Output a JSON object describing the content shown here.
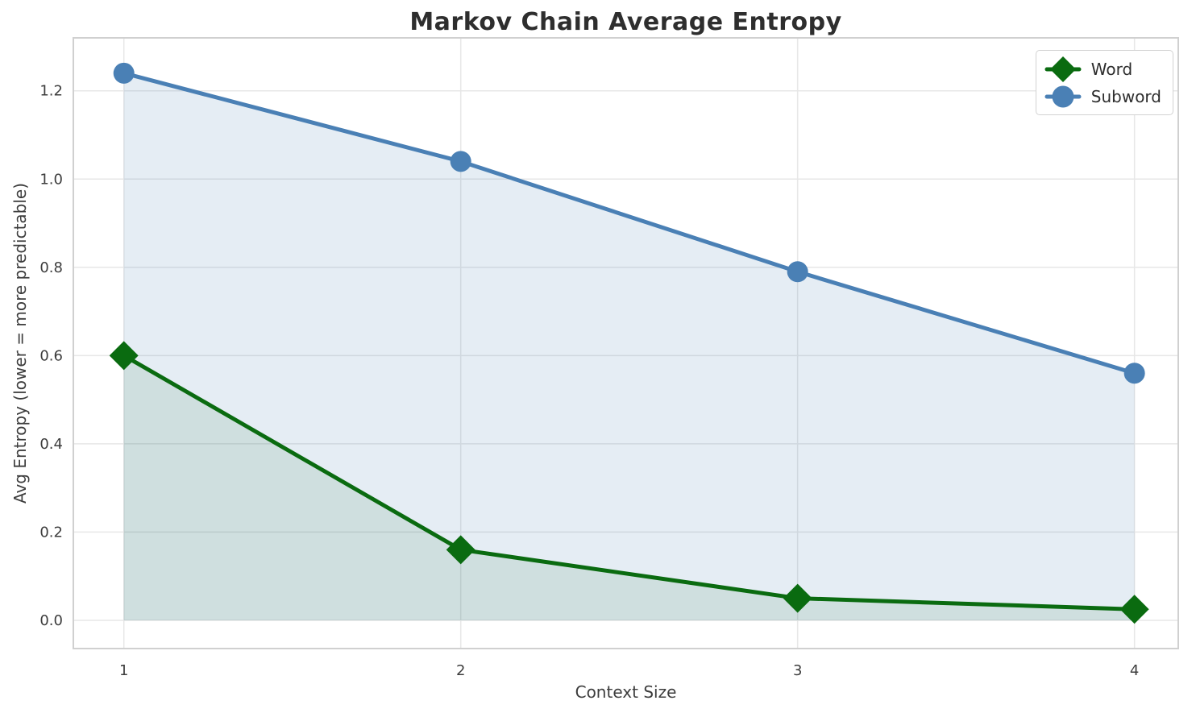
{
  "chart_data": {
    "type": "line",
    "title": "Markov Chain Average Entropy",
    "xlabel": "Context Size",
    "ylabel": "Avg Entropy (lower = more predictable)",
    "x": [
      1,
      2,
      3,
      4
    ],
    "series": [
      {
        "name": "Word",
        "values": [
          0.6,
          0.16,
          0.05,
          0.025
        ],
        "color": "#0a6b10",
        "fill_color": "rgba(13, 100, 15, 0.10)",
        "marker": "diamond"
      },
      {
        "name": "Subword",
        "values": [
          1.24,
          1.04,
          0.79,
          0.56
        ],
        "color": "#4a80b5",
        "fill_color": "rgba(70, 130, 180, 0.14)",
        "marker": "circle"
      }
    ],
    "xticks": [
      1,
      2,
      3,
      4
    ],
    "xtick_labels": [
      "1",
      "2",
      "3",
      "4"
    ],
    "yticks": [
      0.0,
      0.2,
      0.4,
      0.6,
      0.8,
      1.0,
      1.2
    ],
    "ytick_labels": [
      "0.0",
      "0.2",
      "0.4",
      "0.6",
      "0.8",
      "1.0",
      "1.2"
    ],
    "xlim": [
      0.85,
      4.13
    ],
    "ylim": [
      -0.064,
      1.32
    ],
    "grid": true,
    "area_fill": true,
    "legend_position": "upper right"
  },
  "style": {
    "grid_color": "#e7e7e7",
    "spine_color": "#d0d0d0",
    "text_color": "#3d3d3d",
    "title_color": "#2e2e2e",
    "background": "#ffffff"
  }
}
